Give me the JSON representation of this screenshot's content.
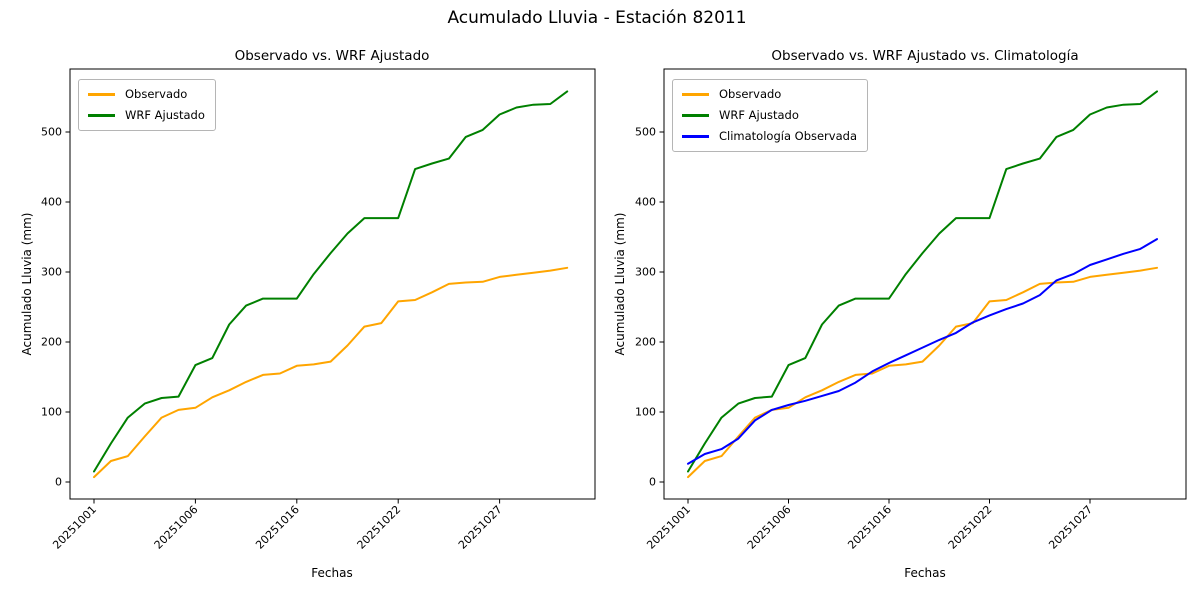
{
  "suptitle": "Acumulado Lluvia - Estación 82011",
  "chart_data": [
    {
      "type": "line",
      "title": "Observado vs. WRF Ajustado",
      "xlabel": "Fechas",
      "ylabel": "Acumulado Lluvia (mm)",
      "grid": false,
      "legend_position": "upper left",
      "ylim": [
        -24,
        590
      ],
      "yticks": [
        0,
        100,
        200,
        300,
        400,
        500
      ],
      "x_tick_labels": [
        "20251001",
        "20251006",
        "20251016",
        "20251022",
        "20251027"
      ],
      "x_tick_indices": [
        0,
        6,
        12,
        18,
        24
      ],
      "n_points": 29,
      "series": [
        {
          "name": "Observado",
          "color": "#FFA500",
          "values": [
            7,
            30,
            37,
            65,
            92,
            103,
            106,
            121,
            131,
            143,
            153,
            155,
            166,
            168,
            172,
            195,
            222,
            227,
            258,
            260,
            271,
            283,
            285,
            286,
            293,
            296,
            299,
            302,
            306
          ]
        },
        {
          "name": "WRF Ajustado",
          "color": "#008000",
          "values": [
            15,
            55,
            92,
            112,
            120,
            122,
            167,
            177,
            225,
            252,
            262,
            262,
            262,
            297,
            327,
            355,
            377,
            377,
            377,
            447,
            455,
            462,
            493,
            503,
            525,
            535,
            539,
            540,
            558
          ]
        }
      ]
    },
    {
      "type": "line",
      "title": "Observado vs. WRF Ajustado vs. Climatología",
      "xlabel": "Fechas",
      "ylabel": "Acumulado Lluvia (mm)",
      "grid": false,
      "legend_position": "upper left",
      "ylim": [
        -24,
        590
      ],
      "yticks": [
        0,
        100,
        200,
        300,
        400,
        500
      ],
      "x_tick_labels": [
        "20251001",
        "20251006",
        "20251016",
        "20251022",
        "20251027"
      ],
      "x_tick_indices": [
        0,
        6,
        12,
        18,
        24
      ],
      "n_points": 29,
      "series": [
        {
          "name": "Observado",
          "color": "#FFA500",
          "values": [
            7,
            30,
            37,
            65,
            92,
            103,
            106,
            121,
            131,
            143,
            153,
            155,
            166,
            168,
            172,
            195,
            222,
            227,
            258,
            260,
            271,
            283,
            285,
            286,
            293,
            296,
            299,
            302,
            306
          ]
        },
        {
          "name": "WRF Ajustado",
          "color": "#008000",
          "values": [
            15,
            55,
            92,
            112,
            120,
            122,
            167,
            177,
            225,
            252,
            262,
            262,
            262,
            297,
            327,
            355,
            377,
            377,
            377,
            447,
            455,
            462,
            493,
            503,
            525,
            535,
            539,
            540,
            558
          ]
        },
        {
          "name": "Climatología Observada",
          "color": "#0000FF",
          "values": [
            26,
            40,
            47,
            62,
            88,
            103,
            110,
            116,
            123,
            130,
            142,
            158,
            170,
            181,
            192,
            203,
            213,
            228,
            238,
            247,
            255,
            267,
            288,
            297,
            310,
            318,
            326,
            333,
            347
          ]
        }
      ]
    }
  ]
}
